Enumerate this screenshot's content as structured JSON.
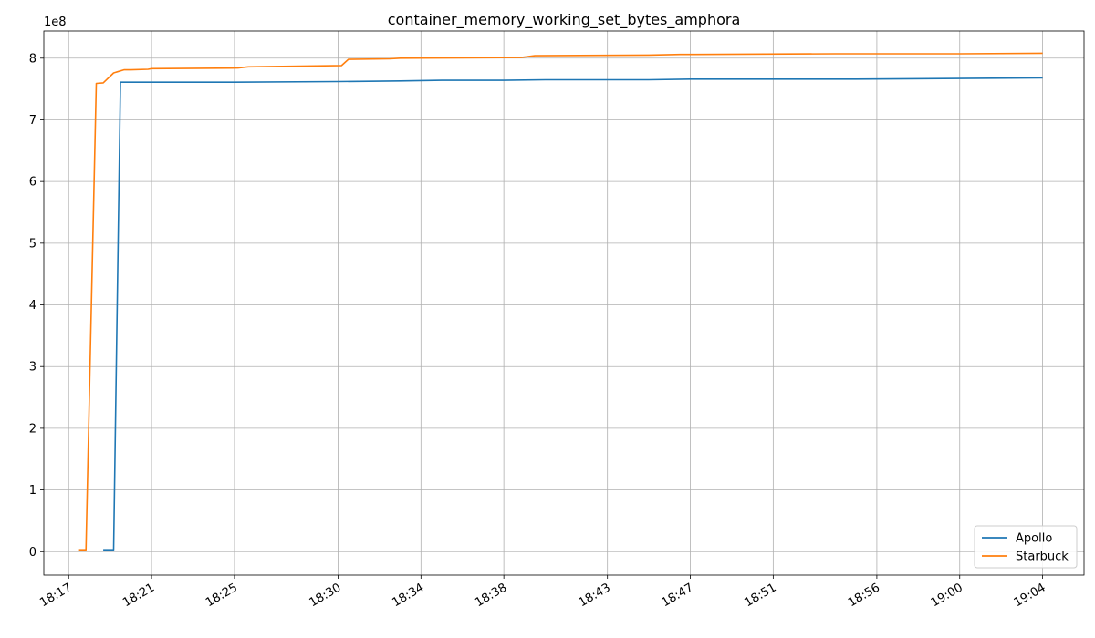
{
  "chart_data": {
    "type": "line",
    "title": "container_memory_working_set_bytes_amphora",
    "xlabel": "",
    "ylabel": "",
    "y_offset_text": "1e8",
    "y_scale": 100000000,
    "xlim": [
      "18:15:48",
      "19:06:00"
    ],
    "ylim": [
      -0.38,
      8.44
    ],
    "x_ticks": [
      "18:17",
      "18:21",
      "18:25",
      "18:30",
      "18:34",
      "18:38",
      "18:43",
      "18:47",
      "18:51",
      "18:56",
      "19:00",
      "19:04"
    ],
    "y_ticks": [
      0,
      1,
      2,
      3,
      4,
      5,
      6,
      7,
      8
    ],
    "grid": true,
    "legend_position": "lower-right",
    "series": [
      {
        "name": "Apollo",
        "color": "#1f77b4",
        "points": [
          [
            "18:18:40",
            0.03
          ],
          [
            "18:19:10",
            0.03
          ],
          [
            "18:19:30",
            7.61
          ],
          [
            "18:21:00",
            7.61
          ],
          [
            "18:25:00",
            7.61
          ],
          [
            "18:30:00",
            7.62
          ],
          [
            "18:33:00",
            7.63
          ],
          [
            "18:35:00",
            7.64
          ],
          [
            "18:38:00",
            7.64
          ],
          [
            "18:40:00",
            7.65
          ],
          [
            "18:45:00",
            7.65
          ],
          [
            "18:47:00",
            7.66
          ],
          [
            "18:51:00",
            7.66
          ],
          [
            "18:55:00",
            7.66
          ],
          [
            "19:00:00",
            7.67
          ],
          [
            "19:04:00",
            7.68
          ]
        ]
      },
      {
        "name": "Starbuck",
        "color": "#ff7f0e",
        "points": [
          [
            "18:17:30",
            0.03
          ],
          [
            "18:17:50",
            0.03
          ],
          [
            "18:18:20",
            7.59
          ],
          [
            "18:18:40",
            7.6
          ],
          [
            "18:19:10",
            7.76
          ],
          [
            "18:19:40",
            7.81
          ],
          [
            "18:20:00",
            7.81
          ],
          [
            "18:20:50",
            7.82
          ],
          [
            "18:21:00",
            7.83
          ],
          [
            "18:25:10",
            7.84
          ],
          [
            "18:25:40",
            7.86
          ],
          [
            "18:30:10",
            7.88
          ],
          [
            "18:30:30",
            7.98
          ],
          [
            "18:32:30",
            7.99
          ],
          [
            "18:33:00",
            8.0
          ],
          [
            "18:38:50",
            8.01
          ],
          [
            "18:39:30",
            8.04
          ],
          [
            "18:45:00",
            8.05
          ],
          [
            "18:46:30",
            8.06
          ],
          [
            "18:47:00",
            8.06
          ],
          [
            "18:54:00",
            8.07
          ],
          [
            "19:00:00",
            8.07
          ],
          [
            "19:04:00",
            8.08
          ]
        ]
      }
    ]
  }
}
